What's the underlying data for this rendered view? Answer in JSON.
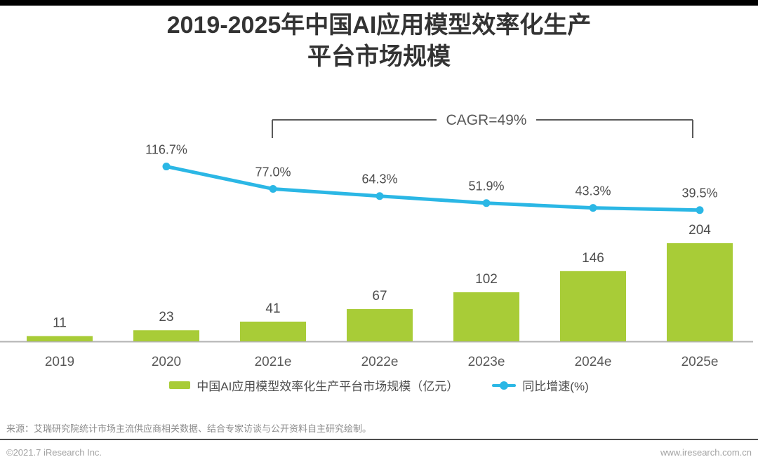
{
  "page": {
    "title_line1": "2019-2025年中国AI应用模型效率化生产",
    "title_line2": "平台市场规模",
    "source_note": "来源：艾瑞研究院统计市场主流供应商相关数据、结合专家访谈与公开资料自主研究绘制。",
    "footer_left": "©2021.7 iResearch Inc.",
    "footer_right": "www.iresearch.com.cn"
  },
  "colors": {
    "bar": "#a8cc37",
    "line": "#2bb7e5",
    "title_text": "#333333",
    "value_label": "#4d4d4d",
    "axis_label": "#595959",
    "axis_line": "#b3b3b3",
    "bracket": "#595959",
    "top_border": "#000000"
  },
  "legend": {
    "items": [
      {
        "type": "bar",
        "label": "中国AI应用模型效率化生产平台市场规模（亿元）"
      },
      {
        "type": "line",
        "label": "同比增速(%)"
      }
    ]
  },
  "chart_data": {
    "type": "bar+line",
    "title": "2019-2025年中国AI应用模型效率化生产平台市场规模",
    "categories": [
      "2019",
      "2020",
      "2021e",
      "2022e",
      "2023e",
      "2024e",
      "2025e"
    ],
    "series": [
      {
        "name": "中国AI应用模型效率化生产平台市场规模（亿元）",
        "type": "bar",
        "color": "#a8cc37",
        "values": [
          11,
          23,
          41,
          67,
          102,
          146,
          204
        ],
        "labels": [
          "11",
          "23",
          "41",
          "67",
          "102",
          "146",
          "204"
        ]
      },
      {
        "name": "同比增速(%)",
        "type": "line",
        "color": "#2bb7e5",
        "values": [
          null,
          116.7,
          77.0,
          64.3,
          51.9,
          43.3,
          39.5
        ],
        "labels": [
          null,
          "116.7%",
          "77.0%",
          "64.3%",
          "51.9%",
          "43.3%",
          "39.5%"
        ]
      }
    ],
    "annotation": {
      "text": "CAGR=49%",
      "from_category": "2021e",
      "to_category": "2025e"
    },
    "ylabel": "",
    "xlabel": "",
    "grid": false,
    "legend_position": "bottom",
    "bar_axis_range": [
      0,
      204
    ],
    "pct_axis_visible_range": [
      39.5,
      116.7
    ]
  }
}
